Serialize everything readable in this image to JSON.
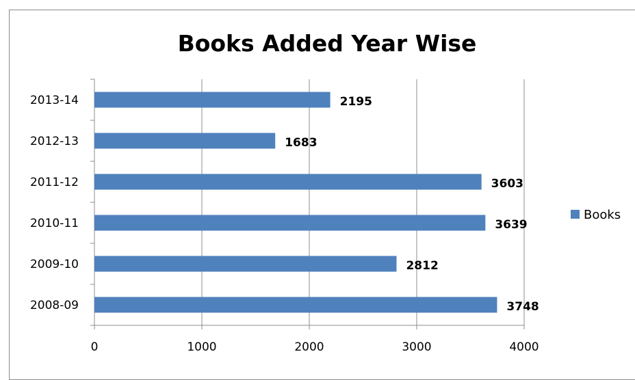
{
  "chart_data": {
    "type": "bar",
    "orientation": "horizontal",
    "title": "Books Added Year Wise",
    "categories": [
      "2008-09",
      "2009-10",
      "2010-11",
      "2011-12",
      "2012-13",
      "2013-14"
    ],
    "series": [
      {
        "name": "Books",
        "values": [
          3748,
          2812,
          3639,
          3603,
          1683,
          2195
        ]
      }
    ],
    "xlim": [
      0,
      4000
    ],
    "x_ticks": [
      "0",
      "1000",
      "2000",
      "3000",
      "4000"
    ],
    "grid": "vertical",
    "legend": "right",
    "data_labels": true,
    "bar_color": "#4f81bd",
    "gridline_color": "#8c8c8c"
  }
}
